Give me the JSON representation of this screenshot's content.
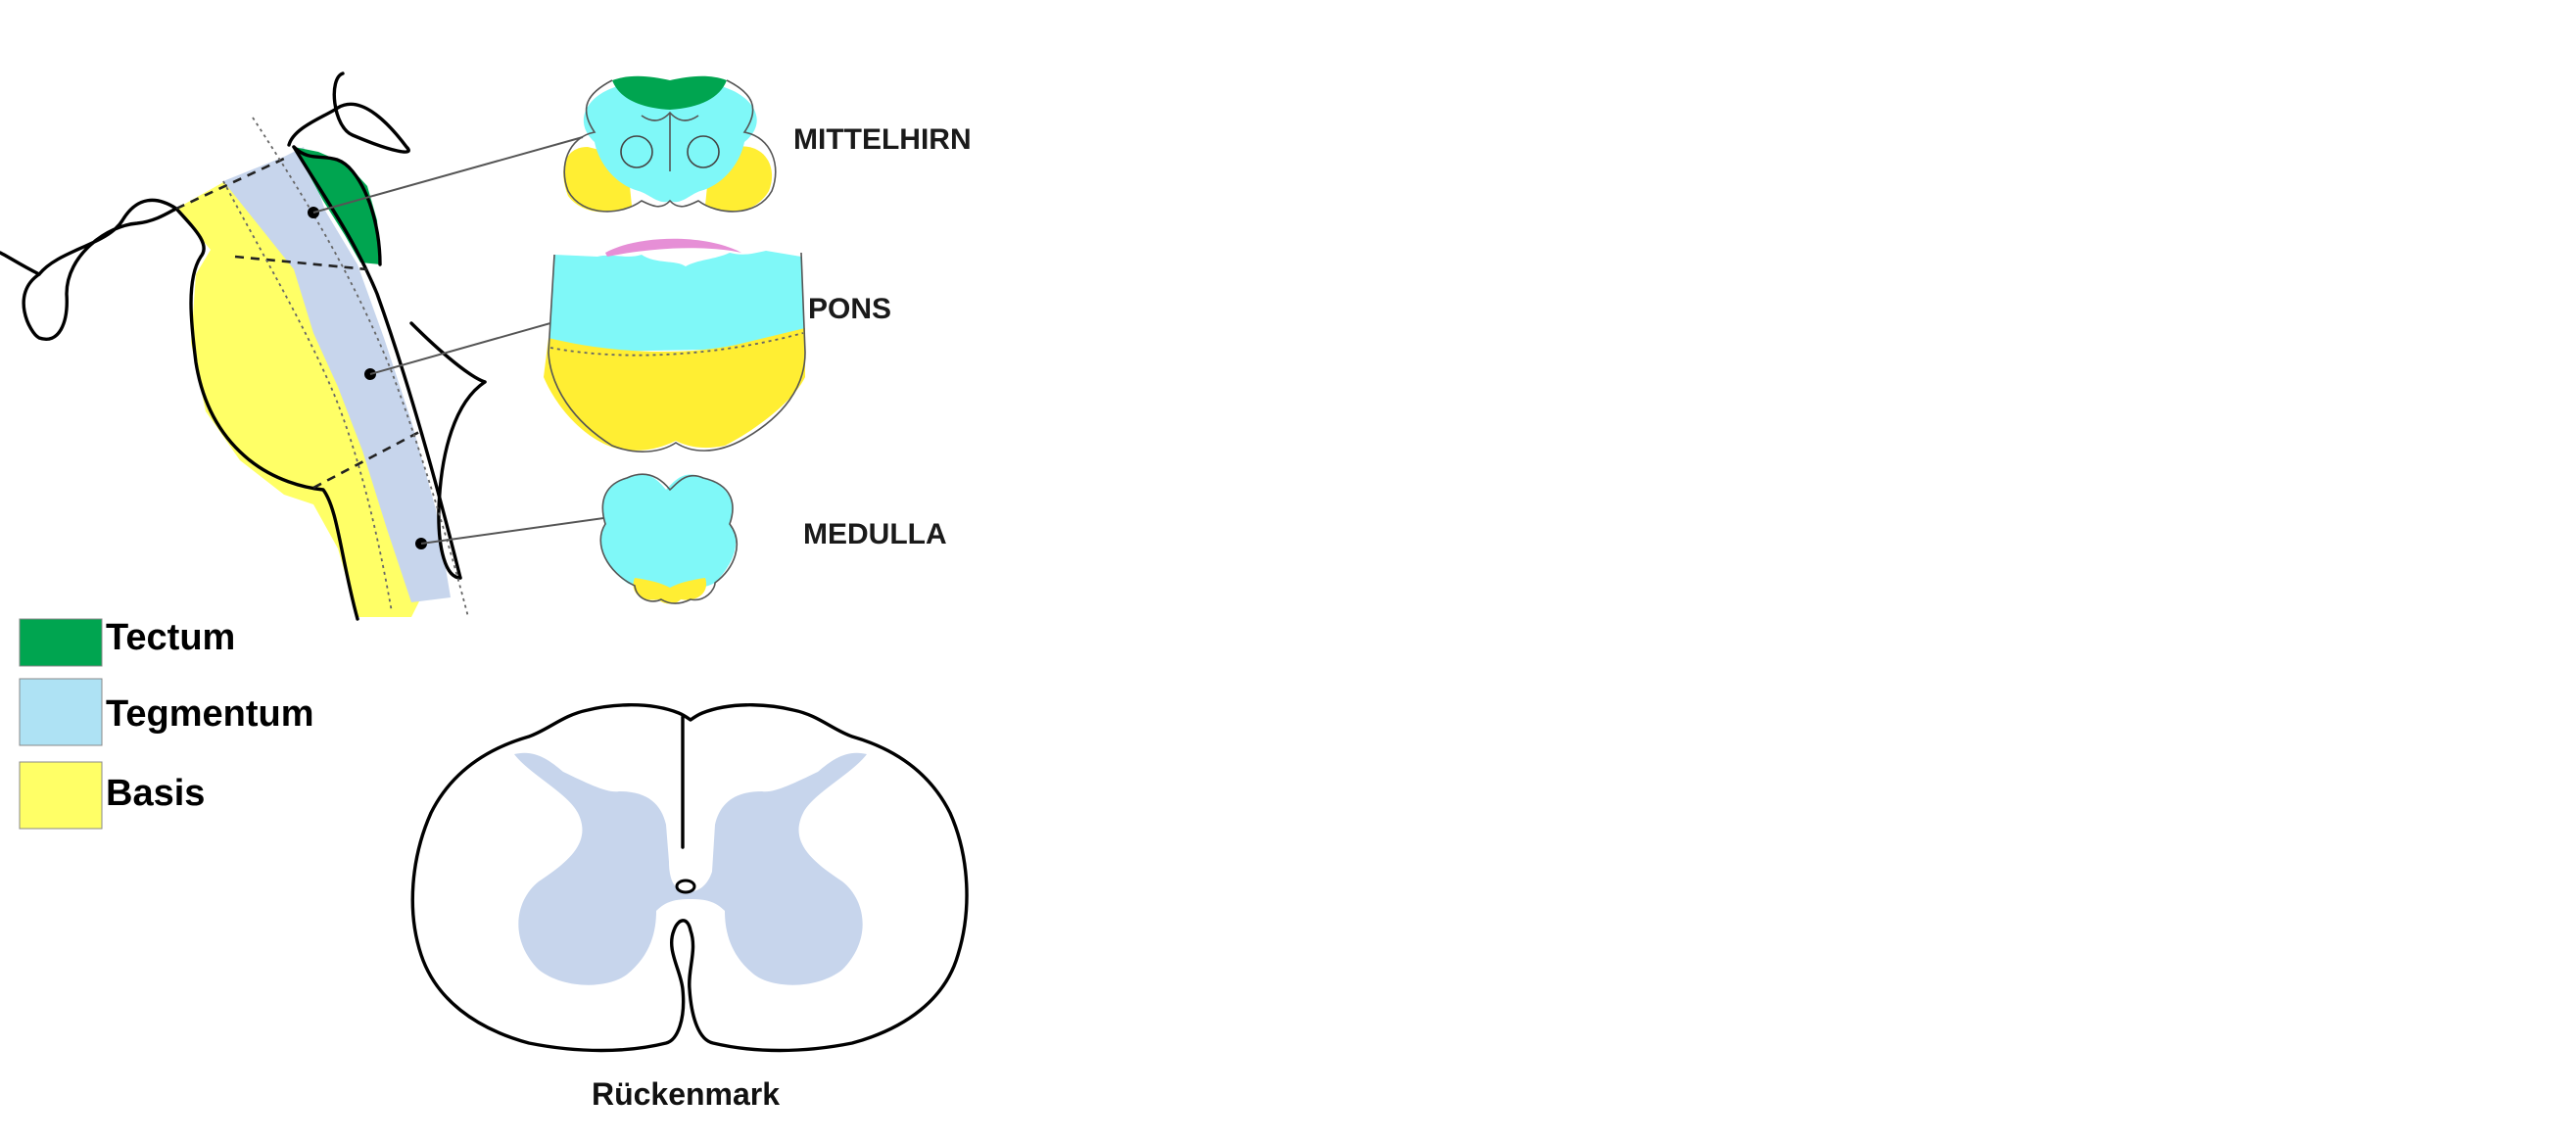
{
  "colors": {
    "tectum": "#00a550",
    "tegmentum": "#aee2f4",
    "basis": "#ffff66",
    "tegmentum_side": "#c7d5ec",
    "section_tegmentum": "#7ff8f8",
    "section_basis": "#ffee33",
    "pons_ventricle_floor": "#e68fd6",
    "spinal_grey": "#c7d5ec"
  },
  "sections": {
    "midbrain": "MITTELHIRN",
    "pons": "PONS",
    "medulla": "MEDULLA"
  },
  "legend": [
    {
      "label": "Tectum",
      "color": "#00a550"
    },
    {
      "label": "Tegmentum",
      "color": "#aee2f4"
    },
    {
      "label": "Basis",
      "color": "#ffff66"
    }
  ],
  "spinal_cord": {
    "caption": "Rückenmark"
  }
}
